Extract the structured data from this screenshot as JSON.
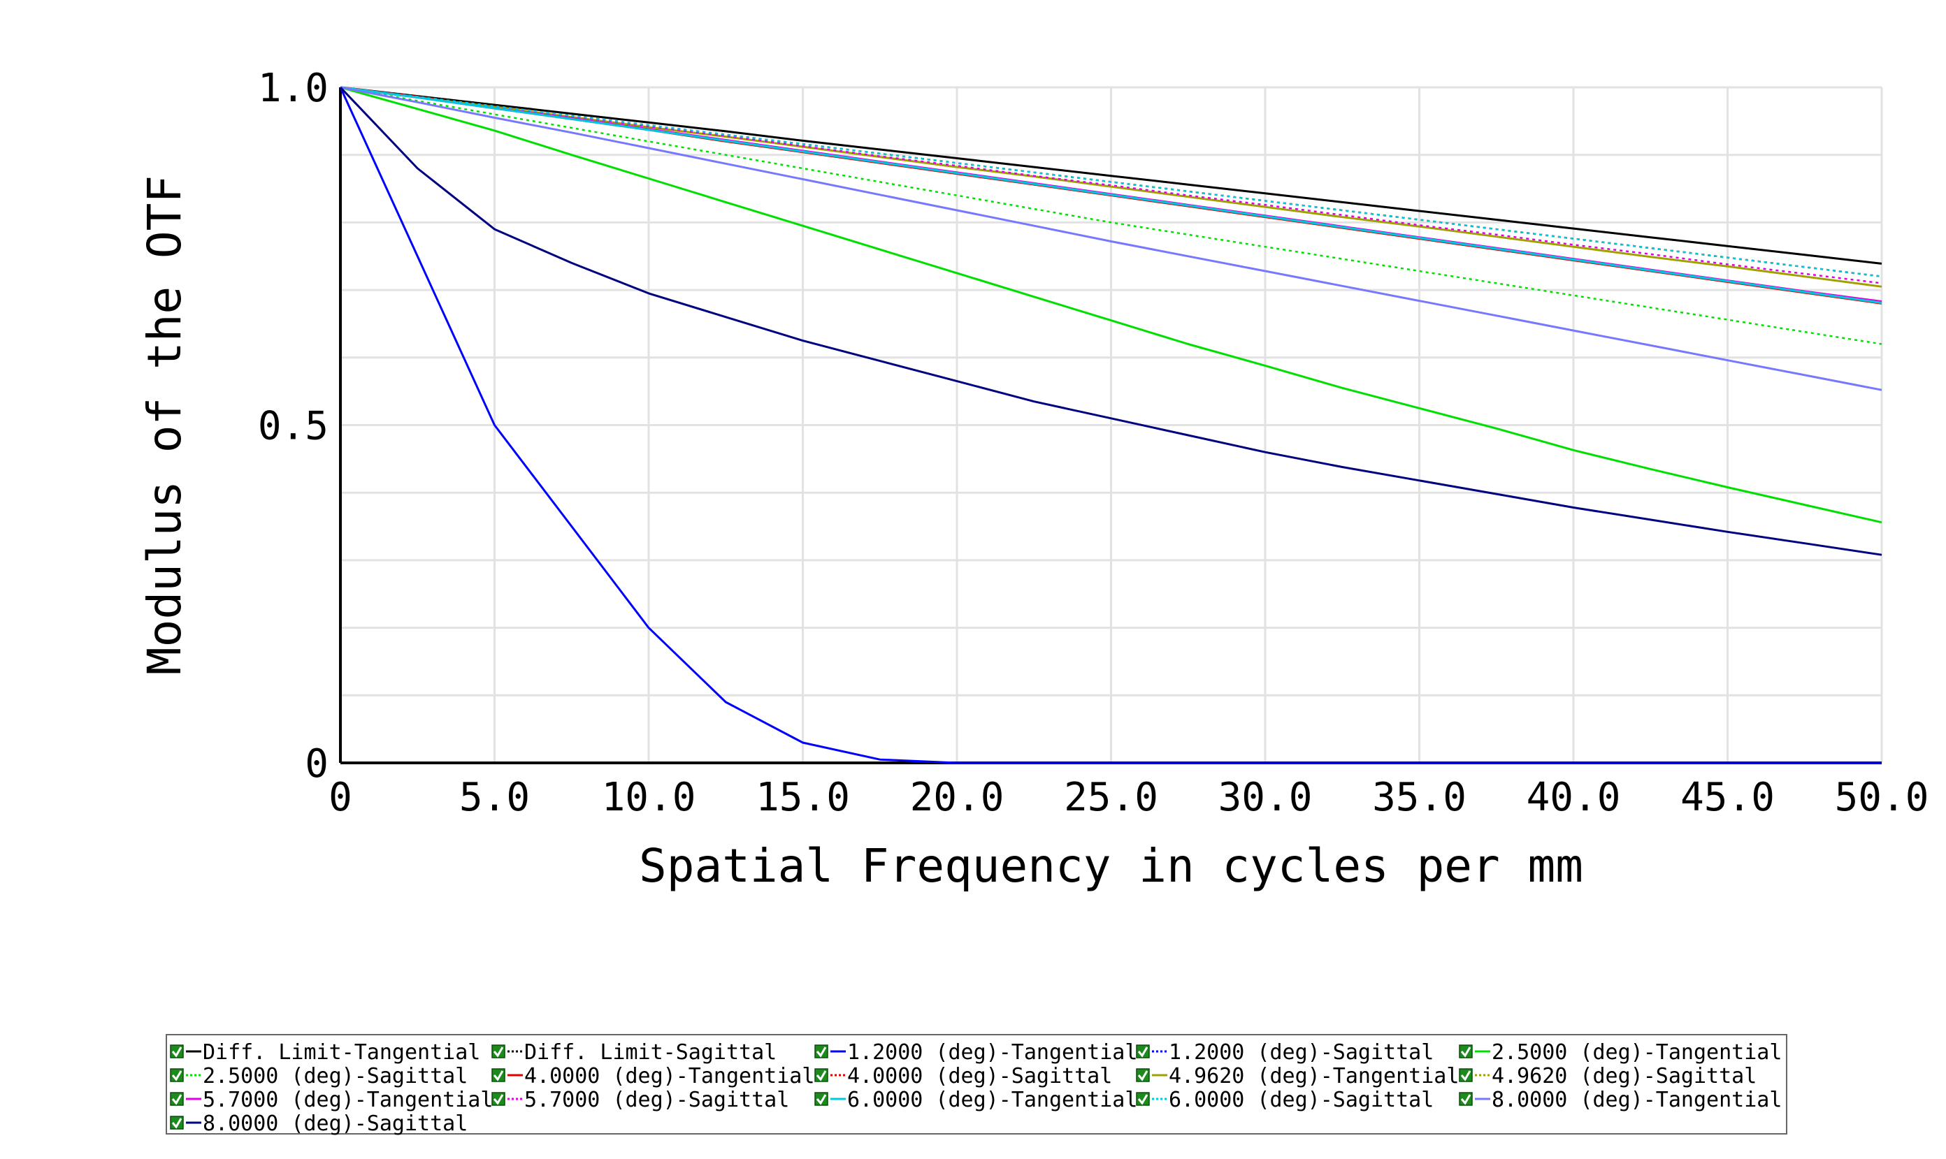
{
  "chart_data": {
    "type": "line",
    "xlabel": "Spatial Frequency in cycles per mm",
    "ylabel": "Modulus of the OTF",
    "xlim": [
      0,
      50
    ],
    "ylim": [
      0,
      1
    ],
    "x_ticks": [
      {
        "value": 0,
        "label": "0"
      },
      {
        "value": 5,
        "label": "5.0"
      },
      {
        "value": 10,
        "label": "10.0"
      },
      {
        "value": 15,
        "label": "15.0"
      },
      {
        "value": 20,
        "label": "20.0"
      },
      {
        "value": 25,
        "label": "25.0"
      },
      {
        "value": 30,
        "label": "30.0"
      },
      {
        "value": 35,
        "label": "35.0"
      },
      {
        "value": 40,
        "label": "40.0"
      },
      {
        "value": 45,
        "label": "45.0"
      },
      {
        "value": 50,
        "label": "50.0"
      }
    ],
    "y_ticks": [
      {
        "value": 0,
        "label": "0"
      },
      {
        "value": 0.5,
        "label": "0.5"
      },
      {
        "value": 1.0,
        "label": "1.0"
      }
    ],
    "grid": true,
    "legend_position": "bottom",
    "x": [
      0,
      2.5,
      5,
      7.5,
      10,
      12.5,
      15,
      17.5,
      20,
      22.5,
      25,
      27.5,
      30,
      32.5,
      35,
      37.5,
      40,
      42.5,
      45,
      47.5,
      50
    ],
    "series": [
      {
        "name": "Diff. Limit-Tangential",
        "color": "#000000",
        "style": "solid",
        "values": [
          1.0,
          0.987,
          0.974,
          0.961,
          0.948,
          0.935,
          0.921,
          0.908,
          0.895,
          0.882,
          0.869,
          0.856,
          0.843,
          0.83,
          0.817,
          0.804,
          0.791,
          0.778,
          0.765,
          0.752,
          0.739
        ]
      },
      {
        "name": "Diff. Limit-Sagittal",
        "color": "#000000",
        "style": "dotted",
        "values": [
          1.0,
          0.987,
          0.974,
          0.961,
          0.948,
          0.935,
          0.921,
          0.908,
          0.895,
          0.882,
          0.869,
          0.856,
          0.843,
          0.83,
          0.817,
          0.804,
          0.791,
          0.778,
          0.765,
          0.752,
          0.739
        ]
      },
      {
        "name": "1.2000 (deg)-Tangential",
        "color": "#0000ff",
        "style": "solid",
        "values": [
          1.0,
          0.75,
          0.5,
          0.35,
          0.2,
          0.09,
          0.03,
          0.005,
          0.0,
          0.0,
          0.0,
          0.0,
          0.0,
          0.0,
          0.0,
          0.0,
          0.0,
          0.0,
          0.0,
          0.0,
          0.0
        ]
      },
      {
        "name": "1.2000 (deg)-Sagittal",
        "color": "#0000ff",
        "style": "dotted",
        "values": [
          1.0,
          0.986,
          0.972,
          0.958,
          0.944,
          0.93,
          0.916,
          0.902,
          0.888,
          0.874,
          0.86,
          0.846,
          0.832,
          0.818,
          0.804,
          0.79,
          0.776,
          0.762,
          0.748,
          0.734,
          0.72
        ]
      },
      {
        "name": "2.5000 (deg)-Tangential",
        "color": "#00e000",
        "style": "solid",
        "values": [
          1.0,
          0.968,
          0.936,
          0.9,
          0.865,
          0.83,
          0.795,
          0.76,
          0.725,
          0.69,
          0.655,
          0.62,
          0.588,
          0.555,
          0.525,
          0.495,
          0.463,
          0.435,
          0.408,
          0.382,
          0.356
        ]
      },
      {
        "name": "2.5000 (deg)-Sagittal",
        "color": "#00e000",
        "style": "dotted",
        "values": [
          1.0,
          0.98,
          0.96,
          0.94,
          0.92,
          0.9,
          0.88,
          0.86,
          0.84,
          0.82,
          0.8,
          0.782,
          0.764,
          0.746,
          0.728,
          0.71,
          0.692,
          0.674,
          0.656,
          0.638,
          0.62
        ]
      },
      {
        "name": "4.0000 (deg)-Tangential",
        "color": "#e00000",
        "style": "solid",
        "values": [
          1.0,
          0.986,
          0.969,
          0.953,
          0.937,
          0.92,
          0.904,
          0.888,
          0.872,
          0.856,
          0.84,
          0.824,
          0.808,
          0.792,
          0.776,
          0.76,
          0.744,
          0.728,
          0.712,
          0.696,
          0.68
        ]
      },
      {
        "name": "4.0000 (deg)-Sagittal",
        "color": "#e00000",
        "style": "dotted",
        "values": [
          1.0,
          0.986,
          0.972,
          0.958,
          0.944,
          0.93,
          0.916,
          0.902,
          0.888,
          0.874,
          0.86,
          0.846,
          0.832,
          0.818,
          0.804,
          0.79,
          0.776,
          0.762,
          0.748,
          0.734,
          0.72
        ]
      },
      {
        "name": "4.9620 (deg)-Tangential",
        "color": "#a0a000",
        "style": "solid",
        "values": [
          1.0,
          0.985,
          0.971,
          0.956,
          0.941,
          0.927,
          0.912,
          0.897,
          0.882,
          0.868,
          0.853,
          0.838,
          0.823,
          0.808,
          0.794,
          0.779,
          0.764,
          0.749,
          0.735,
          0.72,
          0.705
        ]
      },
      {
        "name": "4.9620 (deg)-Sagittal",
        "color": "#a0a000",
        "style": "dotted",
        "values": [
          1.0,
          0.986,
          0.972,
          0.958,
          0.944,
          0.93,
          0.916,
          0.902,
          0.888,
          0.874,
          0.86,
          0.846,
          0.832,
          0.818,
          0.804,
          0.79,
          0.776,
          0.762,
          0.748,
          0.734,
          0.72
        ]
      },
      {
        "name": "5.7000 (deg)-Tangential",
        "color": "#e000e0",
        "style": "solid",
        "values": [
          1.0,
          0.985,
          0.969,
          0.954,
          0.938,
          0.922,
          0.906,
          0.89,
          0.874,
          0.858,
          0.842,
          0.826,
          0.81,
          0.794,
          0.778,
          0.762,
          0.746,
          0.73,
          0.714,
          0.698,
          0.683
        ]
      },
      {
        "name": "5.7000 (deg)-Sagittal",
        "color": "#e000e0",
        "style": "dotted",
        "values": [
          1.0,
          0.986,
          0.971,
          0.957,
          0.942,
          0.928,
          0.913,
          0.898,
          0.884,
          0.869,
          0.855,
          0.84,
          0.826,
          0.811,
          0.796,
          0.782,
          0.767,
          0.753,
          0.738,
          0.724,
          0.71
        ]
      },
      {
        "name": "6.0000 (deg)-Tangential",
        "color": "#00c8e0",
        "style": "solid",
        "values": [
          1.0,
          0.985,
          0.969,
          0.953,
          0.937,
          0.921,
          0.905,
          0.889,
          0.873,
          0.857,
          0.841,
          0.825,
          0.809,
          0.793,
          0.777,
          0.761,
          0.745,
          0.729,
          0.713,
          0.697,
          0.681
        ]
      },
      {
        "name": "6.0000 (deg)-Sagittal",
        "color": "#00c8e0",
        "style": "dotted",
        "values": [
          1.0,
          0.986,
          0.972,
          0.958,
          0.944,
          0.93,
          0.916,
          0.902,
          0.888,
          0.874,
          0.86,
          0.846,
          0.832,
          0.818,
          0.804,
          0.79,
          0.776,
          0.762,
          0.748,
          0.734,
          0.72
        ]
      },
      {
        "name": "8.0000 (deg)-Tangential",
        "color": "#7878ff",
        "style": "solid",
        "values": [
          1.0,
          0.978,
          0.955,
          0.933,
          0.91,
          0.887,
          0.864,
          0.841,
          0.818,
          0.795,
          0.772,
          0.75,
          0.728,
          0.706,
          0.684,
          0.662,
          0.64,
          0.618,
          0.596,
          0.574,
          0.552
        ]
      },
      {
        "name": "8.0000 (deg)-Sagittal",
        "color": "#000080",
        "style": "solid",
        "values": [
          1.0,
          0.88,
          0.79,
          0.74,
          0.695,
          0.66,
          0.625,
          0.595,
          0.565,
          0.535,
          0.51,
          0.485,
          0.46,
          0.438,
          0.418,
          0.398,
          0.378,
          0.36,
          0.342,
          0.325,
          0.308
        ]
      }
    ]
  }
}
